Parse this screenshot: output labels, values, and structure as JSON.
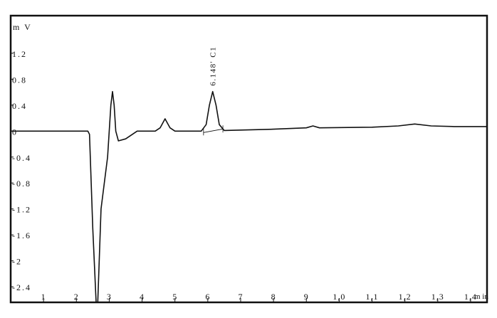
{
  "chart_data": {
    "type": "line",
    "title": "",
    "ylabel": "m V",
    "xlabel": "m in",
    "xlim": [
      0,
      14.5
    ],
    "ylim": [
      -2.64,
      1.78
    ],
    "grid": false,
    "yticks": [
      1.2,
      0.8,
      0.4,
      0,
      -0.4,
      -0.8,
      -1.2,
      -1.6,
      -2,
      -2.4
    ],
    "ytick_labels": [
      "1.2",
      "0.8",
      "0.4",
      "0",
      "-0.4",
      "-0.8",
      "-1.2",
      "-1.6",
      "-2",
      "-2.4"
    ],
    "xticks": [
      1,
      2,
      3,
      4,
      5,
      6,
      7,
      8,
      9,
      10,
      11,
      12,
      13,
      14
    ],
    "xtick_labels": [
      "1",
      "2",
      "3",
      "4",
      "5",
      "6",
      "7",
      "8",
      "9",
      "1,0",
      "1,1",
      "1,2",
      "1,3",
      "1,4"
    ],
    "line_color": "#111111",
    "series": [
      {
        "x": [
          0,
          2.35,
          2.4,
          2.5,
          2.6,
          2.65,
          2.75,
          2.85,
          2.95,
          3.0,
          3.05,
          3.1,
          3.15,
          3.2,
          3.28,
          3.5,
          3.85,
          4.4,
          4.55,
          4.7,
          4.85,
          5.0,
          5.8,
          5.95,
          6.05,
          6.15,
          6.25,
          6.35,
          6.5,
          8.0,
          9.0,
          9.2,
          9.4,
          11.0,
          11.8,
          12.3,
          12.8,
          13.5,
          14.5
        ],
        "y": [
          0,
          0,
          -0.05,
          -1.5,
          -2.64,
          -2.64,
          -1.2,
          -0.8,
          -0.4,
          0.0,
          0.4,
          0.61,
          0.4,
          0.0,
          -0.15,
          -0.12,
          0,
          0,
          0.05,
          0.19,
          0.05,
          0,
          0,
          0.1,
          0.4,
          0.61,
          0.4,
          0.1,
          0.01,
          0.03,
          0.05,
          0.08,
          0.05,
          0.06,
          0.08,
          0.11,
          0.08,
          0.07,
          0.07
        ]
      }
    ],
    "annotations": [
      {
        "text": "6.148' C1",
        "x": 6.148,
        "y": 0.61,
        "baseline_from": 5.87,
        "baseline_to": 6.46
      }
    ]
  }
}
